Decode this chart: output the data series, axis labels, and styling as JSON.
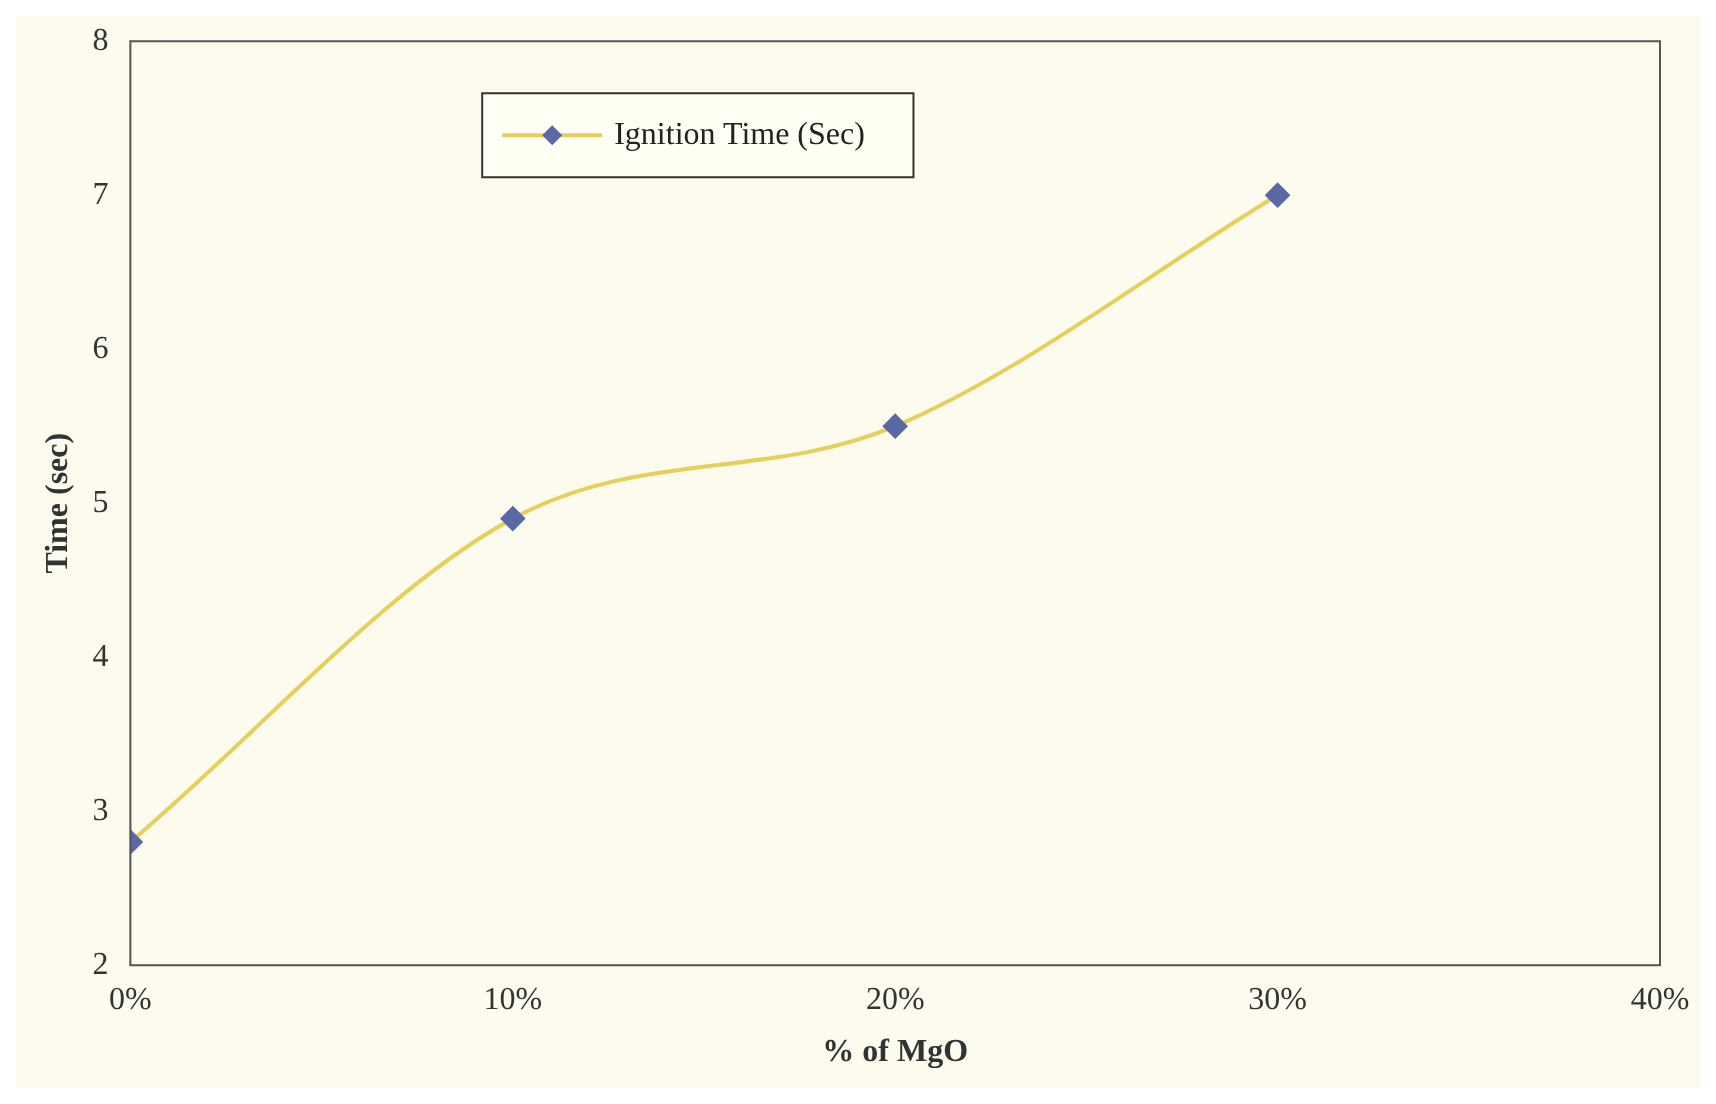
{
  "chart_data": {
    "type": "line",
    "xlabel": "% of MgO",
    "ylabel": "Time (sec)",
    "x": [
      0,
      10,
      20,
      30
    ],
    "series": [
      {
        "name": "Ignition Time (Sec)",
        "color": "#e6cf5a",
        "colors": [
          "#5b68a6",
          "#5b68a6",
          "#5b68a6",
          "#5b68a6"
        ],
        "values": [
          2.8,
          4.9,
          5.5,
          7.0
        ]
      }
    ],
    "xlim": [
      0,
      40
    ],
    "xticks": [
      {
        "value": 0,
        "label": "0%"
      },
      {
        "value": 10,
        "label": "10%"
      },
      {
        "value": 20,
        "label": "20%"
      },
      {
        "value": 30,
        "label": "30%"
      },
      {
        "value": 40,
        "label": "40%"
      }
    ],
    "ylim": [
      2,
      8
    ],
    "yticks": [
      2,
      3,
      4,
      5,
      6,
      7,
      8
    ],
    "grid": false,
    "legend": "top",
    "marker": "diamond",
    "line_style": "solid"
  }
}
